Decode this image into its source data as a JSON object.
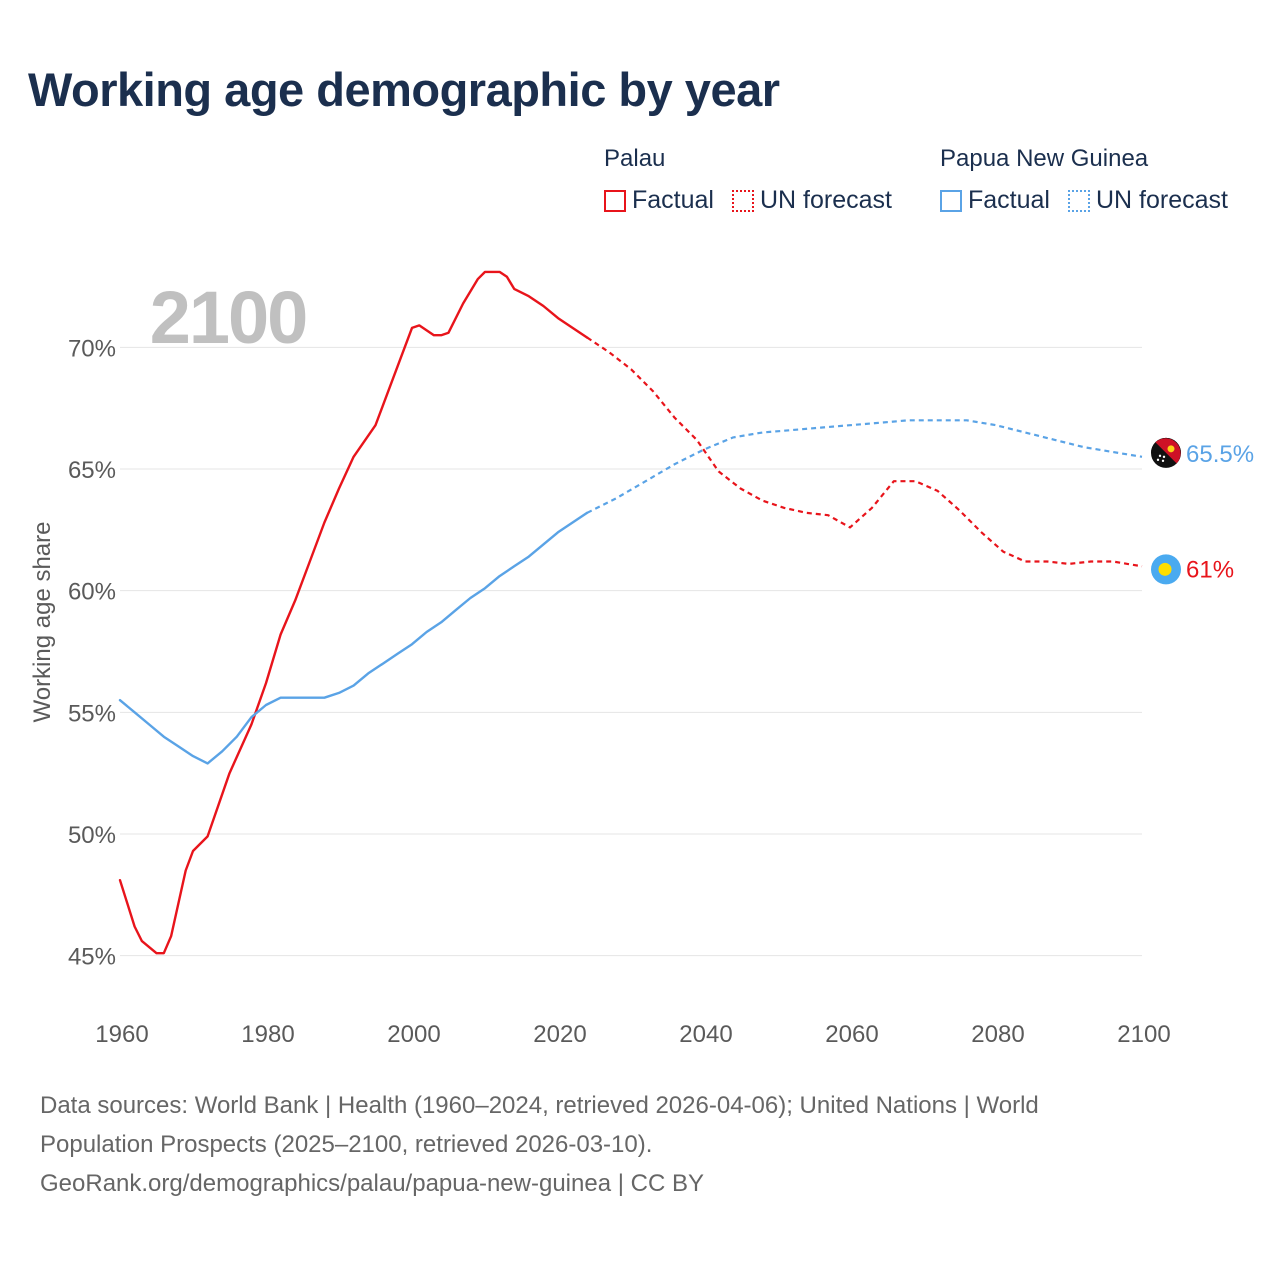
{
  "title": "Working age demographic by year",
  "year_label": "2100",
  "legend": {
    "groups": [
      {
        "country": "Palau",
        "color": "#e8141b",
        "items": [
          {
            "label": "Factual",
            "style": "solid"
          },
          {
            "label": "UN forecast",
            "style": "dotted"
          }
        ]
      },
      {
        "country": "Papua New Guinea",
        "color": "#5aa3e6",
        "items": [
          {
            "label": "Factual",
            "style": "solid"
          },
          {
            "label": "UN forecast",
            "style": "dotted"
          }
        ]
      }
    ]
  },
  "source": {
    "line1": "Data sources: World Bank | Health (1960–2024, retrieved 2026-04-06); United Nations | World",
    "line2": "Population Prospects (2025–2100, retrieved 2026-03-10).",
    "line3": "GeoRank.org/demographics/palau/papua-new-guinea | CC BY"
  },
  "chart_data": {
    "type": "line",
    "title": "Working age demographic by year",
    "xlabel": "",
    "ylabel": "Working age share",
    "xlim": [
      1960,
      2100
    ],
    "ylim": [
      44,
      74
    ],
    "x_ticks": [
      1960,
      1980,
      2000,
      2020,
      2040,
      2060,
      2080,
      2100
    ],
    "y_ticks": [
      45,
      50,
      55,
      60,
      65,
      70
    ],
    "y_tick_labels": [
      "45%",
      "50%",
      "55%",
      "60%",
      "65%",
      "70%"
    ],
    "grid": true,
    "series": [
      {
        "name": "Palau",
        "color": "#e8141b",
        "end_label": "61%",
        "factual": {
          "x": [
            1960,
            1962,
            1963,
            1965,
            1966,
            1967,
            1969,
            1970,
            1972,
            1975,
            1978,
            1980,
            1982,
            1984,
            1986,
            1988,
            1990,
            1992,
            1995,
            1998,
            2000,
            2001,
            2003,
            2004,
            2005,
            2007,
            2009,
            2010,
            2012,
            2013,
            2014,
            2016,
            2018,
            2020,
            2022,
            2024
          ],
          "y": [
            48.1,
            46.2,
            45.6,
            45.1,
            45.1,
            45.8,
            48.5,
            49.3,
            49.9,
            52.5,
            54.5,
            56.2,
            58.2,
            59.6,
            61.2,
            62.8,
            64.2,
            65.5,
            66.8,
            69.2,
            70.8,
            70.9,
            70.5,
            70.5,
            70.6,
            71.8,
            72.8,
            73.1,
            73.1,
            72.9,
            72.4,
            72.1,
            71.7,
            71.2,
            70.8,
            70.4
          ]
        },
        "forecast": {
          "x": [
            2024,
            2027,
            2030,
            2033,
            2036,
            2039,
            2042,
            2045,
            2048,
            2051,
            2054,
            2057,
            2060,
            2063,
            2066,
            2069,
            2072,
            2075,
            2078,
            2081,
            2084,
            2087,
            2090,
            2093,
            2096,
            2098,
            2100
          ],
          "y": [
            70.4,
            69.8,
            69.1,
            68.2,
            67.1,
            66.2,
            64.9,
            64.2,
            63.7,
            63.4,
            63.2,
            63.1,
            62.6,
            63.4,
            64.5,
            64.5,
            64.1,
            63.3,
            62.4,
            61.6,
            61.2,
            61.2,
            61.1,
            61.2,
            61.2,
            61.1,
            61.0
          ]
        }
      },
      {
        "name": "Papua New Guinea",
        "color": "#5aa3e6",
        "end_label": "65.5%",
        "factual": {
          "x": [
            1960,
            1962,
            1964,
            1966,
            1968,
            1970,
            1972,
            1974,
            1976,
            1978,
            1980,
            1982,
            1984,
            1986,
            1988,
            1990,
            1992,
            1994,
            1996,
            1998,
            2000,
            2002,
            2004,
            2006,
            2008,
            2010,
            2012,
            2014,
            2016,
            2018,
            2020,
            2022,
            2024
          ],
          "y": [
            55.5,
            55.0,
            54.5,
            54.0,
            53.6,
            53.2,
            52.9,
            53.4,
            54.0,
            54.8,
            55.3,
            55.6,
            55.6,
            55.6,
            55.6,
            55.8,
            56.1,
            56.6,
            57.0,
            57.4,
            57.8,
            58.3,
            58.7,
            59.2,
            59.7,
            60.1,
            60.6,
            61.0,
            61.4,
            61.9,
            62.4,
            62.8,
            63.2
          ]
        },
        "forecast": {
          "x": [
            2024,
            2028,
            2032,
            2036,
            2040,
            2044,
            2048,
            2052,
            2056,
            2060,
            2064,
            2068,
            2072,
            2076,
            2080,
            2084,
            2088,
            2092,
            2096,
            2100
          ],
          "y": [
            63.2,
            63.8,
            64.5,
            65.2,
            65.8,
            66.3,
            66.5,
            66.6,
            66.7,
            66.8,
            66.9,
            67.0,
            67.0,
            67.0,
            66.8,
            66.5,
            66.2,
            65.9,
            65.7,
            65.5
          ]
        }
      }
    ]
  }
}
